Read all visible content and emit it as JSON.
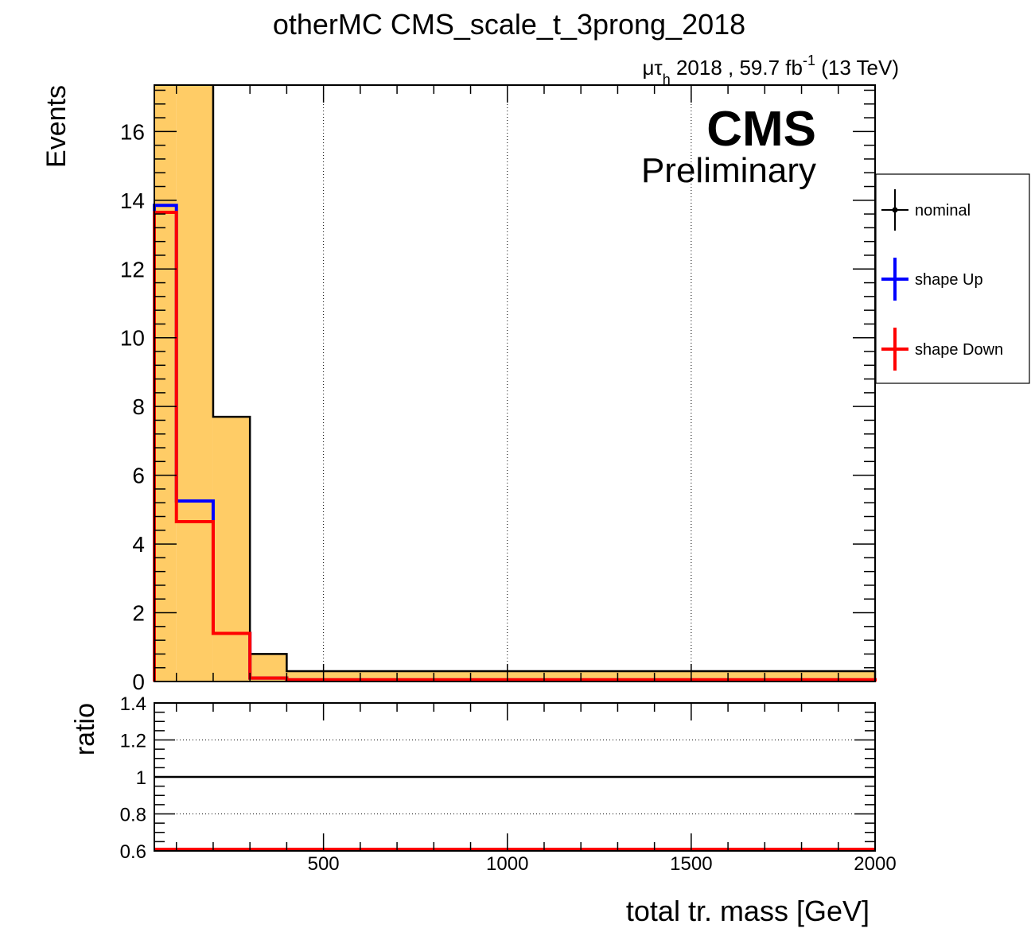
{
  "title": "otherMC CMS_scale_t_3prong_2018",
  "lumi": {
    "channel_main": "μτ",
    "channel_sub": "h",
    "text": " 2018 , 59.7 fb",
    "exp": "-1",
    "energy": " (13 TeV)"
  },
  "cms_label": "CMS",
  "preliminary_label": "Preliminary",
  "colors": {
    "nominal_fill": "#ffcc66",
    "nominal_line": "#000000",
    "up": "#0000ff",
    "down": "#ff0000",
    "grid": "#000000"
  },
  "legend": [
    {
      "key": "nominal",
      "label": "nominal",
      "color": "#000000",
      "marker": "point"
    },
    {
      "key": "up",
      "label": "shape Up",
      "color": "#0000ff",
      "marker": "cross"
    },
    {
      "key": "down",
      "label": "shape Down",
      "color": "#ff0000",
      "marker": "cross"
    }
  ],
  "chart_data": [
    {
      "type": "histogram",
      "ylabel": "Events",
      "xlim": [
        40,
        2000
      ],
      "ylim": [
        0,
        17.35
      ],
      "y_ticks": [
        0,
        2,
        4,
        6,
        8,
        10,
        12,
        14,
        16
      ],
      "x_grid": [
        500,
        1000,
        1500
      ],
      "bin_edges": [
        40,
        100,
        200,
        300,
        400,
        2000
      ],
      "series": [
        {
          "name": "nominal",
          "style": "filled",
          "values": [
            17.35,
            17.35,
            7.7,
            0.8,
            0.3
          ],
          "clipped_at_top": [
            true,
            true,
            false,
            false,
            false
          ]
        },
        {
          "name": "shape Up",
          "style": "line",
          "values": [
            13.85,
            5.25,
            1.4,
            0.1,
            0.05
          ]
        },
        {
          "name": "shape Down",
          "style": "line",
          "values": [
            13.65,
            4.65,
            1.4,
            0.1,
            0.05
          ]
        }
      ]
    },
    {
      "type": "line",
      "ylabel": "ratio",
      "xlabel": "total tr. mass [GeV]",
      "xlim": [
        40,
        2000
      ],
      "ylim": [
        0.6,
        1.4
      ],
      "y_ticks": [
        "0.6",
        "0.8",
        "1",
        "1.2",
        "1.4"
      ],
      "x_ticks": [
        "500",
        "1000",
        "1500",
        "2000"
      ],
      "x_tick_values": [
        500,
        1000,
        1500,
        2000
      ],
      "y_grid": [
        0.8,
        1.2
      ],
      "series": [
        {
          "name": "nominal",
          "y": 1.0
        },
        {
          "name": "shape Up",
          "y": 0.6
        },
        {
          "name": "shape Down",
          "y": 0.6
        }
      ]
    }
  ]
}
